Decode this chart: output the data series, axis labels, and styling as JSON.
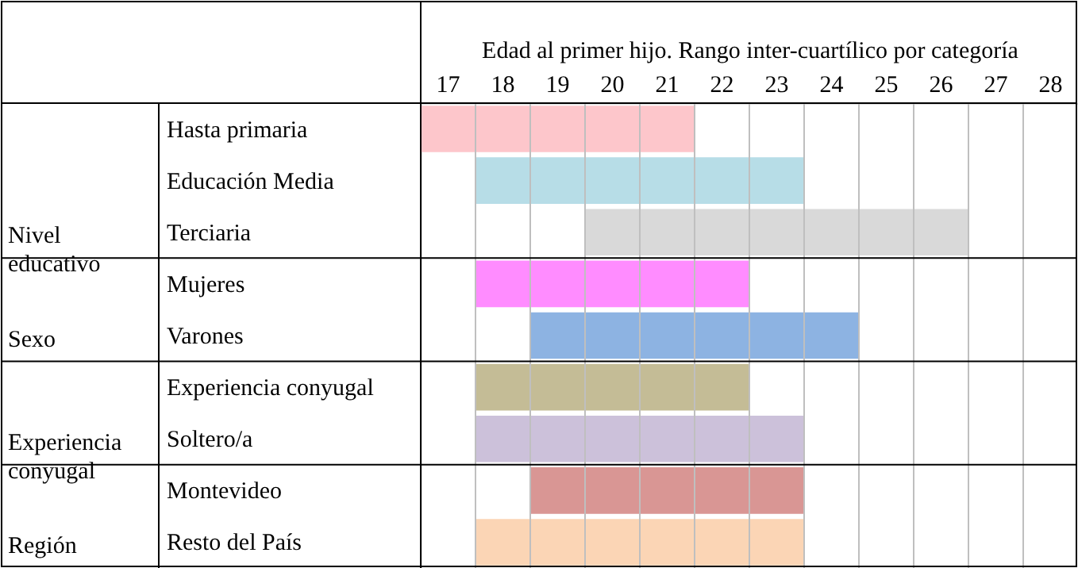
{
  "chart_data": {
    "type": "bar",
    "orientation": "horizontal",
    "xlabel": "Edad al primer hijo. Rango inter-cuartílico por categoría",
    "categories": [
      "Hasta primaria",
      "Educación Media",
      "Terciaria",
      "Mujeres",
      "Varones",
      "Experiencia conyugal",
      "Soltero/a",
      "Montevideo",
      "Resto del País"
    ],
    "base": [
      16.5,
      17.5,
      19.5,
      17.5,
      18.5,
      17.5,
      17.5,
      18.5,
      17.5
    ],
    "values": [
      5,
      6,
      7,
      5,
      6,
      5,
      6,
      5,
      6
    ],
    "colors": [
      "#fdc6cb",
      "#b7dde7",
      "#d9d9d9",
      "#ff8cff",
      "#8db3e2",
      "#c4bc96",
      "#ccc1da",
      "#d99694",
      "#fbd5b5"
    ],
    "xlim": [
      16.5,
      28.5
    ],
    "xticks": [
      17,
      18,
      19,
      20,
      21,
      22,
      23,
      24,
      25,
      26,
      27,
      28,
      {
        "value": 17.5,
        "label": null
      },
      {
        "value": 18.5,
        "label": null
      },
      {
        "value": 19.5,
        "label": null
      },
      {
        "value": 20.5,
        "label": null
      },
      {
        "value": 21.5,
        "label": null
      },
      {
        "value": 22.5,
        "label": null
      },
      {
        "value": 23.5,
        "label": null
      },
      {
        "value": 24.5,
        "label": null
      },
      {
        "value": 25.5,
        "label": null
      },
      {
        "value": 26.5,
        "label": null
      },
      {
        "value": 27.5,
        "label": null
      }
    ],
    "grid": "x",
    "annotations": [
      "Nivel educativo",
      "Sexo",
      "Experiencia conyugal",
      "Región"
    ]
  }
}
